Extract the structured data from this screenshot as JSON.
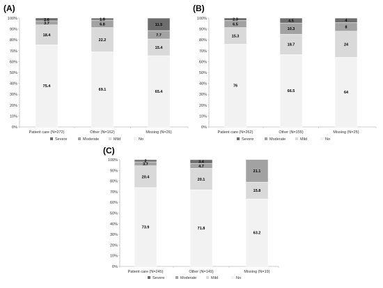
{
  "colors": {
    "severe": "#6d6d6d",
    "moderate": "#a2a2a2",
    "mild": "#d9d9d9",
    "no": "#f2f2f2",
    "axis": "#bdbdbd"
  },
  "chart_data": [
    {
      "type": "bar",
      "stacked": true,
      "panel_label": "(A)",
      "categories": [
        "Patient care (N=272)",
        "Other (N=162)",
        "Missing (N=26)"
      ],
      "series": [
        {
          "name": "No",
          "color_key": "no",
          "values": [
            75.4,
            69.1,
            65.4
          ]
        },
        {
          "name": "Mild",
          "color_key": "mild",
          "values": [
            18.4,
            22.2,
            15.4
          ]
        },
        {
          "name": "Moderate",
          "color_key": "moderate",
          "values": [
            3.7,
            6.8,
            7.7
          ]
        },
        {
          "name": "Severe",
          "color_key": "severe",
          "values": [
            2.6,
            1.9,
            11.5
          ]
        }
      ],
      "ylim": [
        0,
        100
      ],
      "yticks": [
        "0%",
        "10%",
        "20%",
        "30%",
        "40%",
        "50%",
        "60%",
        "70%",
        "80%",
        "90%",
        "100%"
      ],
      "legend_placement": "bottom",
      "grid": false
    },
    {
      "type": "bar",
      "stacked": true,
      "panel_label": "(B)",
      "categories": [
        "Patient care (N=262)",
        "Other (N=155)",
        "Missing (N=25)"
      ],
      "series": [
        {
          "name": "No",
          "color_key": "no",
          "values": [
            76,
            66.5,
            64
          ]
        },
        {
          "name": "Mild",
          "color_key": "mild",
          "values": [
            15.3,
            18.7,
            24
          ]
        },
        {
          "name": "Moderate",
          "color_key": "moderate",
          "values": [
            6.5,
            10.3,
            8
          ]
        },
        {
          "name": "Severe",
          "color_key": "severe",
          "values": [
            2.3,
            4.5,
            4
          ]
        }
      ],
      "ylim": [
        0,
        100
      ],
      "yticks": [
        "0%",
        "10%",
        "20%",
        "30%",
        "40%",
        "50%",
        "60%",
        "70%",
        "80%",
        "90%",
        "100%"
      ],
      "legend_placement": "bottom",
      "grid": false
    },
    {
      "type": "bar",
      "stacked": true,
      "panel_label": "(C)",
      "categories": [
        "Patient care (N=245)",
        "Other (N=149)",
        "Missing (N=19)"
      ],
      "series": [
        {
          "name": "No",
          "color_key": "no",
          "values": [
            73.9,
            71.8,
            63.2
          ]
        },
        {
          "name": "Mild",
          "color_key": "mild",
          "values": [
            20.4,
            20.1,
            15.8
          ]
        },
        {
          "name": "Moderate",
          "color_key": "moderate",
          "values": [
            3.7,
            4.7,
            21.1
          ]
        },
        {
          "name": "Severe",
          "color_key": "severe",
          "values": [
            2,
            3.4,
            0
          ]
        }
      ],
      "ylim": [
        0,
        100
      ],
      "yticks": [
        "0%",
        "10%",
        "20%",
        "30%",
        "40%",
        "50%",
        "60%",
        "70%",
        "80%",
        "90%",
        "100%"
      ],
      "legend_placement": "bottom",
      "grid": false
    }
  ],
  "legend_order": [
    "Severe",
    "Moderate",
    "Mild",
    "No"
  ]
}
